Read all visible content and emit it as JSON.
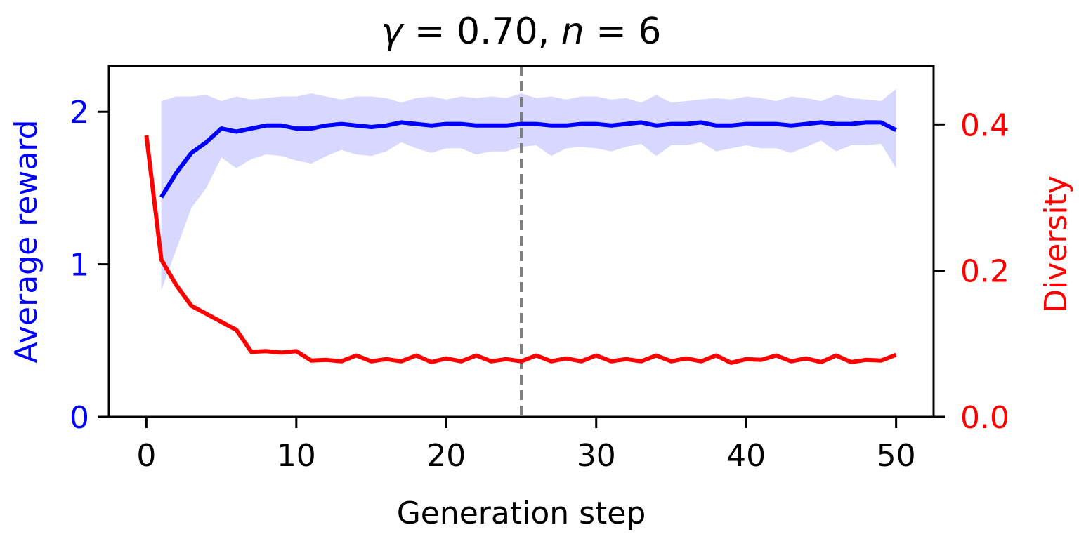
{
  "chart_data": {
    "type": "line",
    "title": {
      "gamma_symbol": "γ",
      "eq1": " = 0.70, ",
      "n_symbol": "n",
      "eq2": " = 6"
    },
    "xlabel": "Generation step",
    "ylabel_left": "Average reward",
    "ylabel_right": "Diversity",
    "xlim": [
      -2.5,
      52.5
    ],
    "ylim_left": [
      0,
      2.3
    ],
    "ylim_right": [
      0,
      0.48
    ],
    "xticks": [
      0,
      10,
      20,
      30,
      40,
      50
    ],
    "yticks_left": [
      0,
      1,
      2
    ],
    "yticks_right": [
      0.0,
      0.2,
      0.4
    ],
    "ytick_labels_left": [
      "0",
      "1",
      "2"
    ],
    "ytick_labels_right": [
      "0.0",
      "0.2",
      "0.4"
    ],
    "vline": {
      "x": 25,
      "color": "#808080",
      "style": "dashed"
    },
    "colors": {
      "reward": "#0000ff",
      "reward_band": "#d8d8ff",
      "diversity": "#ff0000",
      "axis": "#000000"
    },
    "series": [
      {
        "axis": "left",
        "color": "#0000ff",
        "x": [
          1,
          2,
          3,
          4,
          5,
          6,
          7,
          8,
          9,
          10,
          11,
          12,
          13,
          14,
          15,
          16,
          17,
          18,
          19,
          20,
          21,
          22,
          23,
          24,
          25,
          26,
          27,
          28,
          29,
          30,
          31,
          32,
          33,
          34,
          35,
          36,
          37,
          38,
          39,
          40,
          41,
          42,
          43,
          44,
          45,
          46,
          47,
          48,
          49,
          50
        ],
        "values": [
          1.44,
          1.6,
          1.73,
          1.8,
          1.89,
          1.87,
          1.89,
          1.91,
          1.91,
          1.89,
          1.89,
          1.91,
          1.92,
          1.91,
          1.9,
          1.91,
          1.93,
          1.92,
          1.91,
          1.92,
          1.92,
          1.91,
          1.91,
          1.91,
          1.92,
          1.92,
          1.91,
          1.91,
          1.92,
          1.92,
          1.91,
          1.92,
          1.93,
          1.91,
          1.92,
          1.92,
          1.93,
          1.91,
          1.91,
          1.92,
          1.92,
          1.92,
          1.91,
          1.92,
          1.93,
          1.92,
          1.92,
          1.93,
          1.93,
          1.88
        ],
        "band_upper": [
          2.07,
          2.1,
          2.1,
          2.11,
          2.07,
          2.1,
          2.08,
          2.09,
          2.1,
          2.1,
          2.12,
          2.1,
          2.08,
          2.1,
          2.1,
          2.09,
          2.06,
          2.09,
          2.1,
          2.08,
          2.1,
          2.09,
          2.1,
          2.09,
          2.12,
          2.09,
          2.1,
          2.08,
          2.1,
          2.1,
          2.08,
          2.09,
          2.06,
          2.11,
          2.06,
          2.07,
          2.08,
          2.09,
          2.08,
          2.1,
          2.09,
          2.07,
          2.1,
          2.09,
          2.07,
          2.11,
          2.09,
          2.08,
          2.07,
          2.15
        ],
        "band_lower": [
          0.83,
          1.1,
          1.37,
          1.5,
          1.7,
          1.63,
          1.69,
          1.72,
          1.71,
          1.68,
          1.66,
          1.71,
          1.75,
          1.72,
          1.71,
          1.74,
          1.8,
          1.76,
          1.73,
          1.76,
          1.76,
          1.72,
          1.74,
          1.74,
          1.77,
          1.78,
          1.71,
          1.76,
          1.77,
          1.76,
          1.74,
          1.77,
          1.79,
          1.71,
          1.78,
          1.78,
          1.8,
          1.74,
          1.76,
          1.78,
          1.76,
          1.76,
          1.73,
          1.77,
          1.81,
          1.74,
          1.78,
          1.78,
          1.79,
          1.63
        ]
      },
      {
        "axis": "right",
        "color": "#ff0000",
        "x": [
          0,
          1,
          2,
          3,
          4,
          5,
          6,
          7,
          8,
          9,
          10,
          11,
          12,
          13,
          14,
          15,
          16,
          17,
          18,
          19,
          20,
          21,
          22,
          23,
          24,
          25,
          26,
          27,
          28,
          29,
          30,
          31,
          32,
          33,
          34,
          35,
          36,
          37,
          38,
          39,
          40,
          41,
          42,
          43,
          44,
          45,
          46,
          47,
          48,
          49,
          50
        ],
        "values": [
          0.385,
          0.215,
          0.18,
          0.152,
          0.141,
          0.13,
          0.119,
          0.089,
          0.09,
          0.088,
          0.09,
          0.077,
          0.078,
          0.076,
          0.084,
          0.076,
          0.079,
          0.076,
          0.084,
          0.075,
          0.08,
          0.076,
          0.084,
          0.076,
          0.079,
          0.076,
          0.084,
          0.076,
          0.08,
          0.076,
          0.084,
          0.076,
          0.079,
          0.076,
          0.084,
          0.076,
          0.08,
          0.076,
          0.084,
          0.074,
          0.079,
          0.078,
          0.084,
          0.076,
          0.08,
          0.075,
          0.084,
          0.075,
          0.078,
          0.077,
          0.085
        ]
      }
    ],
    "grid": false,
    "legend": "none"
  }
}
